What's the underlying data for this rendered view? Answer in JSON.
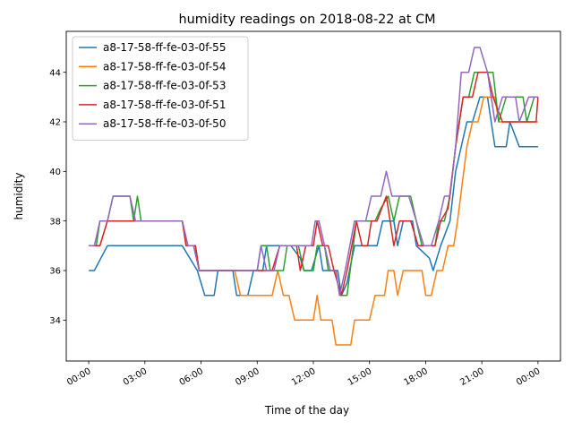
{
  "chart_data": {
    "type": "line",
    "title": "humidity readings on 2018-08-22 at CM",
    "xlabel": "Time of the day",
    "ylabel": "humidity",
    "x_unit": "hours",
    "xlim": [
      -1.2,
      25.2
    ],
    "ylim": [
      32.35,
      45.65
    ],
    "x_ticks": [
      {
        "value": 0,
        "label": "00:00"
      },
      {
        "value": 3,
        "label": "03:00"
      },
      {
        "value": 6,
        "label": "06:00"
      },
      {
        "value": 9,
        "label": "09:00"
      },
      {
        "value": 12,
        "label": "12:00"
      },
      {
        "value": 15,
        "label": "15:00"
      },
      {
        "value": 18,
        "label": "18:00"
      },
      {
        "value": 21,
        "label": "21:00"
      },
      {
        "value": 24,
        "label": "00:00"
      }
    ],
    "y_ticks": [
      34,
      36,
      38,
      40,
      42,
      44
    ],
    "grid": false,
    "legend": "top-left",
    "series": [
      {
        "name": "a8-17-58-ff-fe-03-0f-55",
        "color": "#1f77b4",
        "points": [
          [
            0,
            36
          ],
          [
            0.3,
            36
          ],
          [
            1,
            37
          ],
          [
            5,
            37
          ],
          [
            5.8,
            36
          ],
          [
            6.2,
            35
          ],
          [
            6.7,
            35
          ],
          [
            6.9,
            36
          ],
          [
            7.7,
            36
          ],
          [
            7.9,
            35
          ],
          [
            8.2,
            35
          ],
          [
            8.5,
            35
          ],
          [
            8.8,
            36
          ],
          [
            9.3,
            36
          ],
          [
            9.5,
            37
          ],
          [
            10.8,
            37
          ],
          [
            11.3,
            36.5
          ],
          [
            11.5,
            36
          ],
          [
            11.9,
            36
          ],
          [
            12.3,
            37
          ],
          [
            12.5,
            36
          ],
          [
            13,
            36
          ],
          [
            13.3,
            36
          ],
          [
            13.5,
            35
          ],
          [
            13.8,
            35.5
          ],
          [
            14.2,
            37
          ],
          [
            15.4,
            37
          ],
          [
            15.7,
            38
          ],
          [
            16.3,
            38
          ],
          [
            16.5,
            37
          ],
          [
            16.8,
            38
          ],
          [
            17.3,
            38
          ],
          [
            17.5,
            37
          ],
          [
            18.2,
            36.5
          ],
          [
            18.4,
            36
          ],
          [
            18.8,
            37
          ],
          [
            19.3,
            38
          ],
          [
            19.6,
            40
          ],
          [
            19.9,
            41
          ],
          [
            20.2,
            42
          ],
          [
            20.5,
            42
          ],
          [
            20.9,
            43
          ],
          [
            21.3,
            43
          ],
          [
            21.7,
            41
          ],
          [
            22.3,
            41
          ],
          [
            22.5,
            42
          ],
          [
            23,
            41
          ],
          [
            23.6,
            41
          ],
          [
            24,
            41
          ]
        ]
      },
      {
        "name": "a8-17-58-ff-fe-03-0f-54",
        "color": "#ff7f0e",
        "points": [
          [
            0,
            37
          ],
          [
            0.3,
            37
          ],
          [
            0.6,
            37
          ],
          [
            1,
            38
          ],
          [
            5,
            38
          ],
          [
            5.2,
            37
          ],
          [
            5.6,
            37
          ],
          [
            5.9,
            36
          ],
          [
            7.8,
            36
          ],
          [
            8.1,
            35
          ],
          [
            9,
            35
          ],
          [
            9.8,
            35
          ],
          [
            10.1,
            36
          ],
          [
            10.4,
            35
          ],
          [
            10.7,
            35
          ],
          [
            11,
            34
          ],
          [
            11.6,
            34
          ],
          [
            12,
            34
          ],
          [
            12.2,
            35
          ],
          [
            12.4,
            34
          ],
          [
            13,
            34
          ],
          [
            13.2,
            33
          ],
          [
            14,
            33
          ],
          [
            14.2,
            34
          ],
          [
            15,
            34
          ],
          [
            15.3,
            35
          ],
          [
            15.8,
            35
          ],
          [
            16,
            36
          ],
          [
            16.3,
            36
          ],
          [
            16.5,
            35
          ],
          [
            16.8,
            36
          ],
          [
            17,
            36
          ],
          [
            17.8,
            36
          ],
          [
            18,
            35
          ],
          [
            18.3,
            35
          ],
          [
            18.6,
            36
          ],
          [
            18.9,
            36
          ],
          [
            19.2,
            37
          ],
          [
            19.5,
            37
          ],
          [
            19.7,
            38
          ],
          [
            20.2,
            41
          ],
          [
            20.5,
            42
          ],
          [
            20.8,
            42
          ],
          [
            21.1,
            43
          ],
          [
            21.7,
            43
          ],
          [
            21.9,
            42
          ],
          [
            22.1,
            42
          ],
          [
            22.4,
            42
          ],
          [
            24,
            42
          ]
        ]
      },
      {
        "name": "a8-17-58-ff-fe-03-0f-53",
        "color": "#2ca02c",
        "points": [
          [
            0,
            37
          ],
          [
            0.4,
            37
          ],
          [
            0.6,
            38
          ],
          [
            1,
            38
          ],
          [
            1.3,
            39
          ],
          [
            2.2,
            39
          ],
          [
            2.4,
            38
          ],
          [
            2.6,
            39
          ],
          [
            2.8,
            38
          ],
          [
            5,
            38
          ],
          [
            5.3,
            37
          ],
          [
            5.7,
            37
          ],
          [
            5.9,
            36
          ],
          [
            7.8,
            36
          ],
          [
            8.2,
            36
          ],
          [
            9,
            36
          ],
          [
            9.2,
            37
          ],
          [
            9.5,
            37
          ],
          [
            9.7,
            36
          ],
          [
            10.4,
            36
          ],
          [
            10.6,
            37
          ],
          [
            11.2,
            37
          ],
          [
            11.5,
            36
          ],
          [
            12,
            36
          ],
          [
            12.2,
            37
          ],
          [
            12.6,
            37
          ],
          [
            12.8,
            36
          ],
          [
            13.2,
            36
          ],
          [
            13.4,
            35
          ],
          [
            13.8,
            35
          ],
          [
            14.3,
            38
          ],
          [
            14.6,
            38
          ],
          [
            14.9,
            38
          ],
          [
            15.3,
            38
          ],
          [
            15.6,
            38.5
          ],
          [
            16,
            39
          ],
          [
            16.3,
            38
          ],
          [
            16.6,
            39
          ],
          [
            17.2,
            39
          ],
          [
            17.5,
            38
          ],
          [
            17.8,
            37
          ],
          [
            18.5,
            37
          ],
          [
            18.7,
            38
          ],
          [
            19,
            38
          ],
          [
            19.3,
            39
          ],
          [
            19.6,
            41
          ],
          [
            20,
            43
          ],
          [
            20.3,
            43
          ],
          [
            20.6,
            44
          ],
          [
            21.2,
            44
          ],
          [
            21.6,
            44
          ],
          [
            21.9,
            42
          ],
          [
            22.3,
            43
          ],
          [
            23.2,
            43
          ],
          [
            23.4,
            42
          ],
          [
            23.8,
            43
          ],
          [
            24,
            43
          ]
        ]
      },
      {
        "name": "a8-17-58-ff-fe-03-0f-51",
        "color": "#d62728",
        "points": [
          [
            0,
            37
          ],
          [
            0.4,
            37
          ],
          [
            0.6,
            37
          ],
          [
            1,
            38
          ],
          [
            5,
            38
          ],
          [
            5.2,
            37
          ],
          [
            5.7,
            37
          ],
          [
            5.9,
            36
          ],
          [
            7.8,
            36
          ],
          [
            8.2,
            36
          ],
          [
            9.2,
            36
          ],
          [
            9.5,
            36
          ],
          [
            9.8,
            36
          ],
          [
            10.2,
            37
          ],
          [
            11.1,
            37
          ],
          [
            11.3,
            36
          ],
          [
            11.6,
            37
          ],
          [
            12,
            37
          ],
          [
            12.2,
            38
          ],
          [
            12.5,
            37
          ],
          [
            12.8,
            37
          ],
          [
            13.1,
            36
          ],
          [
            13.5,
            35
          ],
          [
            13.8,
            36
          ],
          [
            14.3,
            38
          ],
          [
            14.6,
            37
          ],
          [
            14.9,
            37
          ],
          [
            15.1,
            38
          ],
          [
            15.4,
            38
          ],
          [
            15.9,
            39
          ],
          [
            16.3,
            37
          ],
          [
            16.6,
            38
          ],
          [
            17.2,
            38
          ],
          [
            17.6,
            37
          ],
          [
            18.2,
            37
          ],
          [
            18.5,
            37
          ],
          [
            18.8,
            38
          ],
          [
            19.2,
            38.5
          ],
          [
            19.6,
            41
          ],
          [
            20,
            43
          ],
          [
            20.3,
            43
          ],
          [
            20.5,
            43
          ],
          [
            20.8,
            44
          ],
          [
            21.3,
            44
          ],
          [
            21.6,
            43
          ],
          [
            22.1,
            42
          ],
          [
            22.5,
            42
          ],
          [
            23.2,
            42
          ],
          [
            23.6,
            42
          ],
          [
            23.9,
            42
          ],
          [
            24,
            43
          ]
        ]
      },
      {
        "name": "a8-17-58-ff-fe-03-0f-50",
        "color": "#9467bd",
        "points": [
          [
            0,
            37
          ],
          [
            0.3,
            37
          ],
          [
            0.6,
            38
          ],
          [
            1,
            38
          ],
          [
            1.3,
            39
          ],
          [
            2.2,
            39
          ],
          [
            2.5,
            38
          ],
          [
            5,
            38
          ],
          [
            5.3,
            37
          ],
          [
            5.6,
            37
          ],
          [
            5.9,
            36
          ],
          [
            7.8,
            36
          ],
          [
            8.4,
            36
          ],
          [
            8.7,
            36
          ],
          [
            9,
            36
          ],
          [
            9.2,
            37
          ],
          [
            9.5,
            36
          ],
          [
            9.9,
            36
          ],
          [
            10.2,
            37
          ],
          [
            11,
            37
          ],
          [
            11.3,
            37
          ],
          [
            11.6,
            37
          ],
          [
            11.9,
            37
          ],
          [
            12.1,
            38
          ],
          [
            12.3,
            38
          ],
          [
            12.6,
            37
          ],
          [
            12.9,
            36
          ],
          [
            13.2,
            36
          ],
          [
            13.4,
            35
          ],
          [
            13.7,
            36
          ],
          [
            14.2,
            38
          ],
          [
            14.8,
            38
          ],
          [
            15.1,
            39
          ],
          [
            15.6,
            39
          ],
          [
            15.9,
            40
          ],
          [
            16.2,
            39
          ],
          [
            16.6,
            39
          ],
          [
            17.1,
            39
          ],
          [
            17.5,
            38
          ],
          [
            17.9,
            37
          ],
          [
            18.3,
            37
          ],
          [
            18.7,
            38
          ],
          [
            19,
            39
          ],
          [
            19.3,
            39
          ],
          [
            19.6,
            41
          ],
          [
            19.9,
            44
          ],
          [
            20.3,
            44
          ],
          [
            20.6,
            45
          ],
          [
            20.9,
            45
          ],
          [
            21.3,
            44
          ],
          [
            21.7,
            42
          ],
          [
            22.1,
            43
          ],
          [
            22.8,
            43
          ],
          [
            23,
            42
          ],
          [
            23.5,
            43
          ],
          [
            24,
            43
          ]
        ]
      }
    ]
  }
}
